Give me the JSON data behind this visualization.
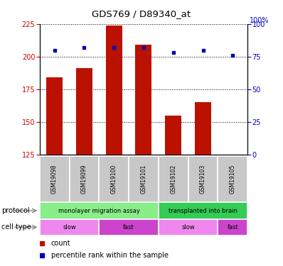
{
  "title": "GDS769 / D89340_at",
  "samples": [
    "GSM19098",
    "GSM19099",
    "GSM19100",
    "GSM19101",
    "GSM19102",
    "GSM19103",
    "GSM19105"
  ],
  "count_values": [
    184,
    191,
    224,
    209,
    155,
    165,
    125
  ],
  "percentile_values": [
    80,
    82,
    82,
    82,
    78,
    80,
    76
  ],
  "ylim_left": [
    125,
    225
  ],
  "ylim_right": [
    0,
    100
  ],
  "yticks_left": [
    125,
    150,
    175,
    200,
    225
  ],
  "yticks_right": [
    0,
    25,
    50,
    75,
    100
  ],
  "protocol_groups": [
    {
      "label": "monolayer migration assay",
      "start": 0,
      "end": 4,
      "color": "#88EE88"
    },
    {
      "label": "transplanted into brain",
      "start": 4,
      "end": 7,
      "color": "#33CC55"
    }
  ],
  "cell_type_groups": [
    {
      "label": "slow",
      "start": 0,
      "end": 2,
      "color": "#EE88EE"
    },
    {
      "label": "fast",
      "start": 2,
      "end": 4,
      "color": "#CC44CC"
    },
    {
      "label": "slow",
      "start": 4,
      "end": 6,
      "color": "#EE88EE"
    },
    {
      "label": "fast",
      "start": 6,
      "end": 7,
      "color": "#CC44CC"
    }
  ],
  "bar_color": "#BB1100",
  "dot_color": "#0000BB",
  "ax_left_color": "#CC0000",
  "ax_right_color": "#0000CC",
  "bar_width": 0.55,
  "sample_box_color": "#C8C8C8",
  "legend_items": [
    {
      "color": "#BB1100",
      "label": "count"
    },
    {
      "color": "#0000BB",
      "label": "percentile rank within the sample"
    }
  ]
}
